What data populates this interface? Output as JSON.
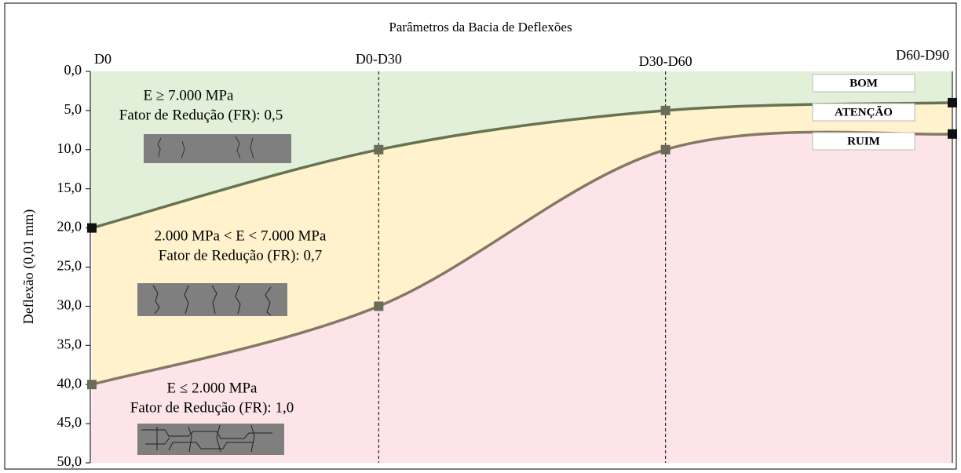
{
  "chart_data": {
    "type": "line",
    "title": "Parâmetros da Bacia de Deflexões",
    "y_label": "Deflexão (0,01 mm)",
    "categories": [
      "D0",
      "D0-D30",
      "D30-D60",
      "D60-D90"
    ],
    "series": [
      {
        "color": "#4d5d3a",
        "values": [
          20,
          10,
          5,
          4
        ]
      },
      {
        "color": "#6e6450",
        "values": [
          40,
          30,
          10,
          8
        ]
      }
    ],
    "ylim": [
      0,
      50
    ],
    "y_inverted": true,
    "yticks": [
      {
        "value": 0,
        "label": "0,0"
      },
      {
        "value": 5,
        "label": "5,0"
      },
      {
        "value": 10,
        "label": "10,0"
      },
      {
        "value": 15,
        "label": "15,0"
      },
      {
        "value": 20,
        "label": "20,0"
      },
      {
        "value": 25,
        "label": "25,0"
      },
      {
        "value": 30,
        "label": "30,0"
      },
      {
        "value": 35,
        "label": "35,0"
      },
      {
        "value": 40,
        "label": "40,0"
      },
      {
        "value": 45,
        "label": "45,0"
      },
      {
        "value": 50,
        "label": "50,0"
      }
    ],
    "zones": [
      {
        "label": "BOM",
        "color": "#00a050",
        "fill": "#e2efd9"
      },
      {
        "label": "ATENÇÃO",
        "color": "#f5b800",
        "fill": "#fff2cc"
      },
      {
        "label": "RUIM",
        "color": "#e00000",
        "fill": "#fde4e8"
      }
    ],
    "annotations": [
      "E ≥ 7.000 MPa",
      "Fator de Redução (FR): 0,5",
      "2.000 MPa < E < 7.000 MPa",
      "Fator de Redução (FR): 0,7",
      "E ≤ 2.000 MPa",
      "Fator de Redução (FR): 1,0"
    ]
  }
}
